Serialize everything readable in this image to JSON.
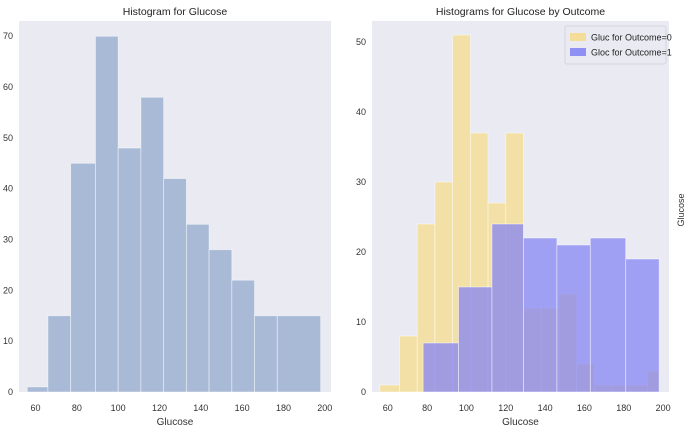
{
  "chart_data": [
    {
      "type": "bar",
      "title": "Histogram for Glucose",
      "xlabel": "Glucose",
      "ylabel": "",
      "xlim": [
        52,
        203
      ],
      "ylim": [
        0,
        73
      ],
      "xticks": [
        60,
        80,
        100,
        120,
        140,
        160,
        180,
        200
      ],
      "yticks": [
        0,
        10,
        20,
        30,
        40,
        50,
        60,
        70
      ],
      "grid": false,
      "color": "#a9bad6",
      "bins": [
        {
          "x0": 56,
          "x1": 66,
          "count": 1
        },
        {
          "x0": 66,
          "x1": 77,
          "count": 15
        },
        {
          "x0": 77,
          "x1": 89,
          "count": 45
        },
        {
          "x0": 89,
          "x1": 100,
          "count": 70
        },
        {
          "x0": 100,
          "x1": 111,
          "count": 48
        },
        {
          "x0": 111,
          "x1": 122,
          "count": 58
        },
        {
          "x0": 122,
          "x1": 133,
          "count": 42
        },
        {
          "x0": 133,
          "x1": 144,
          "count": 33
        },
        {
          "x0": 144,
          "x1": 155,
          "count": 28
        },
        {
          "x0": 155,
          "x1": 166,
          "count": 22
        },
        {
          "x0": 166,
          "x1": 177,
          "count": 15
        },
        {
          "x0": 177,
          "x1": 198,
          "count": 15
        }
      ]
    },
    {
      "type": "bar",
      "title": "Histograms for Glucose by Outcome",
      "xlabel": "Glucose",
      "ylabel": "",
      "xlim": [
        52,
        203
      ],
      "ylim": [
        0,
        53
      ],
      "xticks": [
        60,
        80,
        100,
        120,
        140,
        160,
        180,
        200
      ],
      "yticks": [
        0,
        10,
        20,
        30,
        40,
        50
      ],
      "grid": false,
      "legend_position": "top-right",
      "series": [
        {
          "name": "Gluc for Outcome=0",
          "color": "#f5dc8c",
          "bins": [
            {
              "x0": 56,
              "x1": 66,
              "count": 1
            },
            {
              "x0": 66,
              "x1": 75,
              "count": 8
            },
            {
              "x0": 75,
              "x1": 84,
              "count": 24
            },
            {
              "x0": 84,
              "x1": 93,
              "count": 30
            },
            {
              "x0": 93,
              "x1": 102,
              "count": 51
            },
            {
              "x0": 102,
              "x1": 111,
              "count": 37
            },
            {
              "x0": 111,
              "x1": 120,
              "count": 27
            },
            {
              "x0": 120,
              "x1": 129,
              "count": 37
            },
            {
              "x0": 129,
              "x1": 138,
              "count": 12
            },
            {
              "x0": 138,
              "x1": 147,
              "count": 12
            },
            {
              "x0": 147,
              "x1": 156,
              "count": 14
            },
            {
              "x0": 156,
              "x1": 165,
              "count": 4
            },
            {
              "x0": 165,
              "x1": 174,
              "count": 1
            },
            {
              "x0": 174,
              "x1": 183,
              "count": 1
            },
            {
              "x0": 183,
              "x1": 192,
              "count": 1
            },
            {
              "x0": 192,
              "x1": 198,
              "count": 3
            }
          ]
        },
        {
          "name": "Gloc for Outcome=1",
          "color": "#8586f3",
          "bins": [
            {
              "x0": 78,
              "x1": 96,
              "count": 7
            },
            {
              "x0": 96,
              "x1": 113,
              "count": 15
            },
            {
              "x0": 113,
              "x1": 129,
              "count": 24
            },
            {
              "x0": 129,
              "x1": 146,
              "count": 22
            },
            {
              "x0": 146,
              "x1": 163,
              "count": 21
            },
            {
              "x0": 163,
              "x1": 181,
              "count": 22
            },
            {
              "x0": 181,
              "x1": 198,
              "count": 19
            }
          ]
        }
      ]
    }
  ],
  "right_edge_label": "Glucose"
}
